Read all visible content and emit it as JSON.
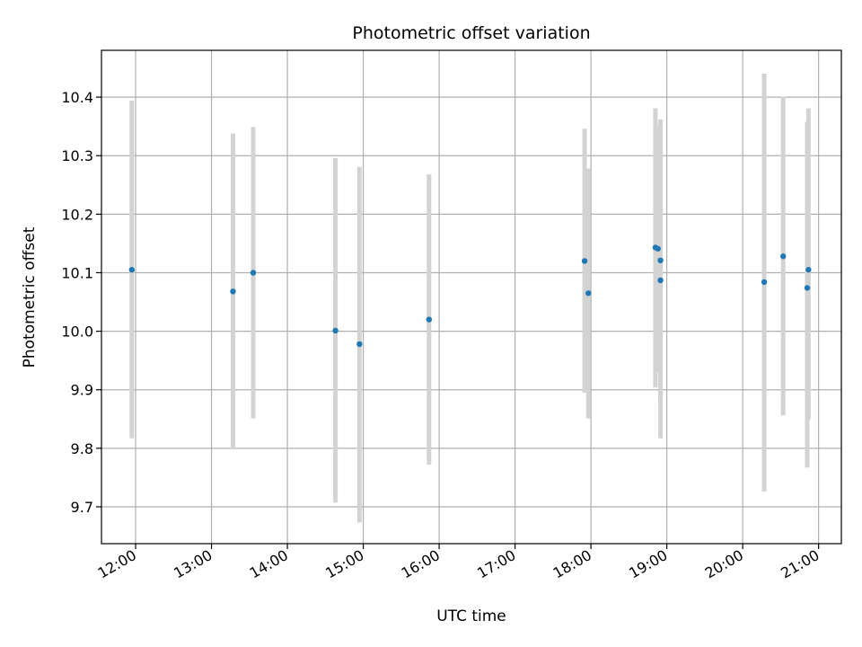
{
  "chart_data": {
    "type": "scatter",
    "title": "Photometric offset variation",
    "xlabel": "UTC time",
    "ylabel": "Photometric offset",
    "xlim": [
      "11:33",
      "21:18"
    ],
    "ylim": [
      9.637,
      10.48
    ],
    "grid": true,
    "x_ticks": [
      "12:00",
      "13:00",
      "14:00",
      "15:00",
      "16:00",
      "17:00",
      "18:00",
      "19:00",
      "20:00",
      "21:00"
    ],
    "y_ticks": [
      "9.7",
      "9.8",
      "9.9",
      "10.0",
      "10.1",
      "10.2",
      "10.3",
      "10.4"
    ],
    "point_color": "#1f77b4",
    "errorbar_color": "#d3d3d3",
    "points": [
      {
        "x": "11:57",
        "y": 10.105,
        "low": 9.817,
        "high": 10.394
      },
      {
        "x": "13:17",
        "y": 10.068,
        "low": 9.798,
        "high": 10.338
      },
      {
        "x": "13:33",
        "y": 10.1,
        "low": 9.851,
        "high": 10.349
      },
      {
        "x": "14:38",
        "y": 10.001,
        "low": 9.707,
        "high": 10.296
      },
      {
        "x": "14:57",
        "y": 9.978,
        "low": 9.673,
        "high": 10.281
      },
      {
        "x": "15:52",
        "y": 10.02,
        "low": 9.772,
        "high": 10.268
      },
      {
        "x": "17:55",
        "y": 10.12,
        "low": 9.895,
        "high": 10.346
      },
      {
        "x": "17:58",
        "y": 10.065,
        "low": 9.851,
        "high": 10.278
      },
      {
        "x": "18:51",
        "y": 10.143,
        "low": 9.904,
        "high": 10.381
      },
      {
        "x": "18:53",
        "y": 10.141,
        "low": 9.93,
        "high": 10.352
      },
      {
        "x": "18:55",
        "y": 10.121,
        "low": 9.883,
        "high": 10.362
      },
      {
        "x": "18:55",
        "y": 10.087,
        "low": 9.817,
        "high": 10.357
      },
      {
        "x": "20:17",
        "y": 10.084,
        "low": 9.726,
        "high": 10.44
      },
      {
        "x": "20:32",
        "y": 10.128,
        "low": 9.856,
        "high": 10.401
      },
      {
        "x": "20:52",
        "y": 10.105,
        "low": 9.849,
        "high": 10.381
      },
      {
        "x": "20:51",
        "y": 10.074,
        "low": 9.767,
        "high": 10.358
      }
    ]
  }
}
